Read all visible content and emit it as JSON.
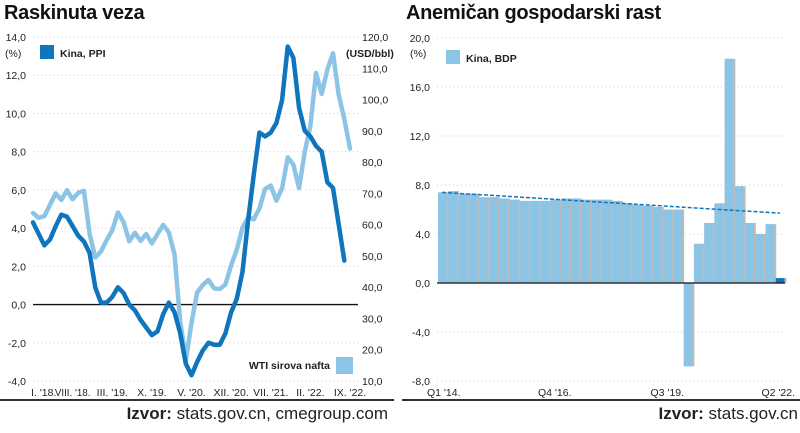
{
  "chart_data": [
    {
      "type": "line",
      "title": "Raskinuta veza",
      "ylabel_left": "(%)",
      "ylabel_right": "(USD/bbl)",
      "ylim_left": [
        -4,
        14
      ],
      "ylim_right": [
        10,
        120
      ],
      "yticks_left": [
        "14,0",
        "12,0",
        "10,0",
        "8,0",
        "6,0",
        "4,0",
        "2,0",
        "0,0",
        "-2,0",
        "-4,0"
      ],
      "yticks_right": [
        "120,0",
        "110,0",
        "100,0",
        "90,0",
        "80,0",
        "70,0",
        "60,0",
        "50,0",
        "40,0",
        "30,0",
        "20,0",
        "10,0"
      ],
      "xticks": [
        "I. '18.",
        "VIII. '18.",
        "III. '19.",
        "X. '19.",
        "V. '20.",
        "XII. '20.",
        "VII. '21.",
        "II. '22.",
        "IX. '22."
      ],
      "grid": true,
      "series": [
        {
          "name": "Kina, PPI",
          "axis": "left",
          "color": "#0f75bc",
          "values": [
            4.3,
            3.7,
            3.1,
            3.4,
            4.1,
            4.7,
            4.6,
            4.1,
            3.6,
            3.3,
            2.7,
            0.9,
            0.1,
            0.1,
            0.4,
            0.9,
            0.6,
            0.0,
            -0.3,
            -0.8,
            -1.2,
            -1.6,
            -1.4,
            -0.5,
            0.1,
            -0.4,
            -1.5,
            -3.1,
            -3.7,
            -3.0,
            -2.4,
            -2.0,
            -2.1,
            -2.1,
            -1.5,
            -0.4,
            0.3,
            1.7,
            4.4,
            6.8,
            9.0,
            8.8,
            9.0,
            9.5,
            10.7,
            13.5,
            12.9,
            10.3,
            9.1,
            8.8,
            8.3,
            8.0,
            6.4,
            6.1,
            4.2,
            2.3
          ]
        },
        {
          "name": "WTI sirova nafta",
          "axis": "right",
          "color": "#8cc4e6",
          "values": [
            63.7,
            62.2,
            62.7,
            66.3,
            70.0,
            67.9,
            71.0,
            68.1,
            70.2,
            70.8,
            57.0,
            49.5,
            51.4,
            55.0,
            58.2,
            63.9,
            60.8,
            54.7,
            57.4,
            54.8,
            57.0,
            54.0,
            57.0,
            59.9,
            57.5,
            50.5,
            29.2,
            16.6,
            28.6,
            38.3,
            40.7,
            42.3,
            39.6,
            39.4,
            40.9,
            47.0,
            52.0,
            59.0,
            62.3,
            61.7,
            65.2,
            71.4,
            72.5,
            67.7,
            71.6,
            81.5,
            79.2,
            71.7,
            83.2,
            91.6,
            108.5,
            101.8,
            109.6,
            114.8,
            101.6,
            93.7,
            84.3
          ]
        }
      ],
      "legend": [
        "top-left",
        "bottom-right"
      ],
      "source_label": "Izvor:",
      "source": "stats.gov.cn, cmegroup.com"
    },
    {
      "type": "bar",
      "title": "Anemičan gospodarski rast",
      "ylabel": "(%)",
      "ylim": [
        -8,
        20
      ],
      "yticks": [
        "20,0",
        "16,0",
        "12,0",
        "8,0",
        "4,0",
        "0,0",
        "-4,0",
        "-8,0"
      ],
      "xticks": [
        "Q1 '14.",
        "Q4 '16.",
        "Q3 '19.",
        "Q2 '22."
      ],
      "series": [
        {
          "name": "Kina, BDP",
          "color": "#8cc4e6",
          "highlight_color": "#0f75bc",
          "values": [
            7.4,
            7.5,
            7.3,
            7.3,
            7.0,
            7.0,
            6.9,
            6.8,
            6.7,
            6.7,
            6.7,
            6.8,
            6.9,
            6.9,
            6.8,
            6.8,
            6.8,
            6.7,
            6.5,
            6.4,
            6.3,
            6.2,
            6.0,
            6.0,
            -6.8,
            3.2,
            4.9,
            6.5,
            18.3,
            7.9,
            4.9,
            4.0,
            4.8,
            0.4
          ]
        }
      ],
      "trendline": {
        "start": 7.4,
        "end": 5.7,
        "color": "#0f75bc"
      },
      "legend": "top-left",
      "source_label": "Izvor:",
      "source": "stats.gov.cn"
    }
  ]
}
